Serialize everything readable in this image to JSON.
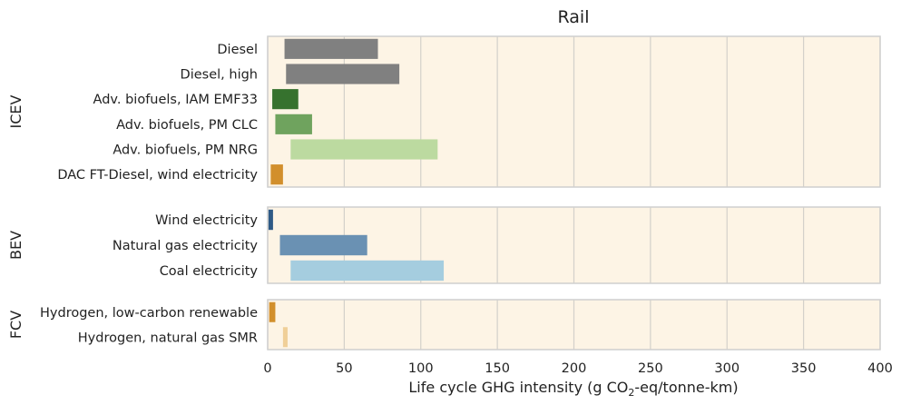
{
  "chart_data": {
    "type": "bar",
    "orientation": "horizontal",
    "title": "Rail",
    "xlabel": {
      "pre": "Life cycle GHG intensity (g CO",
      "sub": "2",
      "post": "-eq/tonne-km)"
    },
    "xlim": [
      0,
      400
    ],
    "xticks": [
      0,
      50,
      100,
      150,
      200,
      250,
      300,
      350,
      400
    ],
    "grid": true,
    "background": "#fdf4e5",
    "panels": [
      {
        "label": "ICEV",
        "bars": [
          {
            "name": "Diesel",
            "start": 11,
            "end": 72,
            "color": "#808080"
          },
          {
            "name": "Diesel, high",
            "start": 12,
            "end": 86,
            "color": "#808080"
          },
          {
            "name": "Adv. biofuels, IAM EMF33",
            "start": 3,
            "end": 20,
            "color": "#36722e"
          },
          {
            "name": "Adv. biofuels, PM CLC",
            "start": 5,
            "end": 29,
            "color": "#6fa35e"
          },
          {
            "name": "Adv. biofuels, PM NRG",
            "start": 15,
            "end": 111,
            "color": "#bcdaa0"
          },
          {
            "name": "DAC FT-Diesel, wind electricity",
            "start": 2,
            "end": 10,
            "color": "#d28f2c"
          }
        ]
      },
      {
        "label": "BEV",
        "bars": [
          {
            "name": "Wind electricity",
            "start": 0.5,
            "end": 3.5,
            "color": "#2f5a86"
          },
          {
            "name": "Natural gas electricity",
            "start": 8,
            "end": 65,
            "color": "#6a91b3"
          },
          {
            "name": "Coal electricity",
            "start": 15,
            "end": 115,
            "color": "#a5cddf"
          }
        ]
      },
      {
        "label": "FCV",
        "bars": [
          {
            "name": "Hydrogen, low-carbon renewable",
            "start": 1,
            "end": 5,
            "color": "#d28f2c"
          },
          {
            "name": "Hydrogen, natural gas SMR",
            "start": 10,
            "end": 13,
            "color": "#f0cf98"
          }
        ]
      }
    ]
  }
}
